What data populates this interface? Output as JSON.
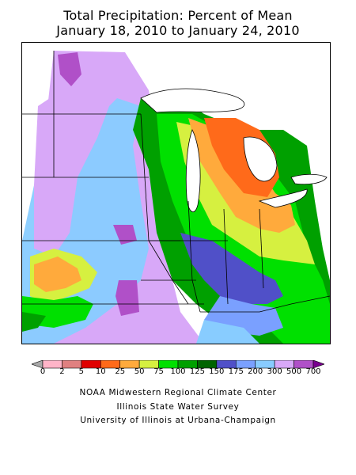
{
  "title": {
    "line1": "Total Precipitation: Percent of Mean",
    "line2": "January 18, 2010 to January 24, 2010"
  },
  "legend": {
    "labels": [
      "0",
      "2",
      "5",
      "10",
      "25",
      "50",
      "75",
      "100",
      "125",
      "150",
      "175",
      "200",
      "300",
      "500",
      "700"
    ],
    "colors": [
      "#a8a8a8",
      "#ffb4c8",
      "#e08080",
      "#e00000",
      "#ff6a1a",
      "#ffaa3c",
      "#d6f040",
      "#00e000",
      "#00a000",
      "#006400",
      "#5050c8",
      "#7aa0ff",
      "#88ccff",
      "#d8a8f8",
      "#b050c8",
      "#7a0090"
    ]
  },
  "credits": {
    "line1": "NOAA Midwestern Regional Climate Center",
    "line2": "Illinois State Water Survey",
    "line3": "University of Illinois at Urbana-Champaign"
  }
}
